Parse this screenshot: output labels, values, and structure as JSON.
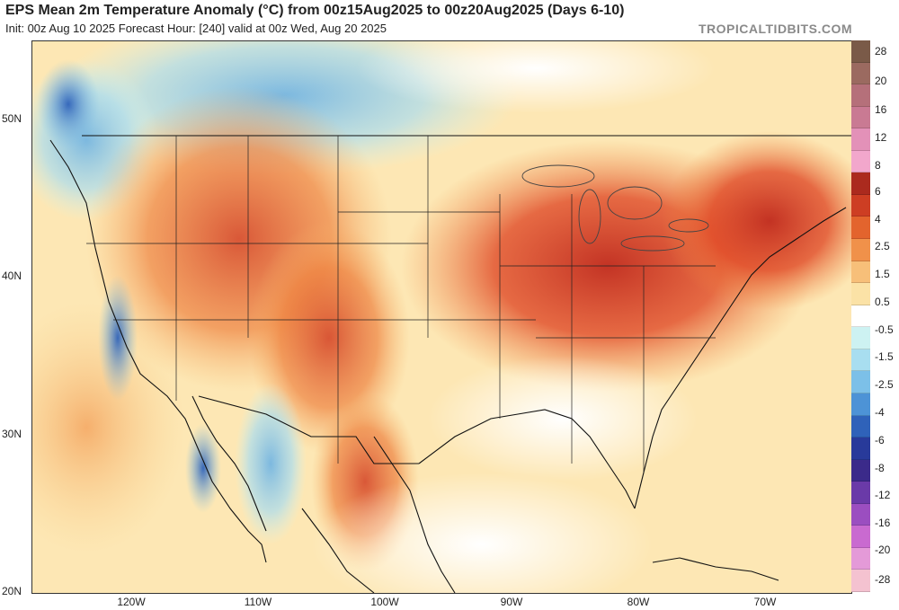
{
  "header": {
    "title": "EPS Mean 2m Temperature Anomaly (°C) from 00z15Aug2025 to 00z20Aug2025 (Days 6-10)",
    "subtitle": "Init: 00z Aug 10 2025   Forecast Hour: [240]   valid at 00z Wed, Aug 20 2025",
    "brand": "TROPICALTIDBITS.COM"
  },
  "map": {
    "latitude_labels": [
      "50N",
      "40N",
      "30N",
      "20N"
    ],
    "longitude_labels": [
      "120W",
      "110W",
      "100W",
      "90W",
      "80W",
      "70W"
    ],
    "background_color": "#ffffff",
    "ocean_color": "#fdf3c7"
  },
  "colorbar": {
    "units": "°C",
    "labels": [
      "28",
      "20",
      "16",
      "12",
      "8",
      "6",
      "4",
      "2.5",
      "1.5",
      "0.5",
      "-0.5",
      "-1.5",
      "-2.5",
      "-4",
      "-6",
      "-8",
      "-12",
      "-16",
      "-20",
      "-28"
    ],
    "colors": [
      "#7a5a48",
      "#9b6a60",
      "#b5707a",
      "#c97a93",
      "#e391b8",
      "#f2a7cc",
      "#ab2a1e",
      "#cd3e23",
      "#e3642d",
      "#f0914a",
      "#f7bf79",
      "#fbe2a6",
      "#ffffff",
      "#cdf2f2",
      "#a8def0",
      "#7cc0e8",
      "#4d93d6",
      "#2f62b9",
      "#283a9a",
      "#3b2a8a",
      "#6a3aa8",
      "#9b4ec0",
      "#c96ad0",
      "#e49ad8",
      "#f4c2d0"
    ]
  }
}
